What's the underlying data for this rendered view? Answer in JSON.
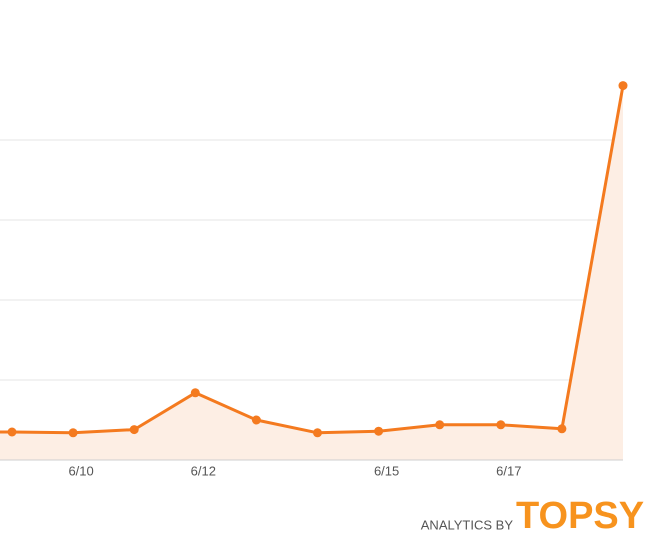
{
  "chart_data": {
    "type": "line",
    "categories": [
      null,
      "6/10",
      null,
      "6/12",
      null,
      null,
      "6/15",
      null,
      "6/17",
      null,
      null
    ],
    "values": [
      0.35,
      0.34,
      0.38,
      0.84,
      0.5,
      0.34,
      0.36,
      0.44,
      0.44,
      0.39,
      4.68
    ],
    "color": "#f47a1f",
    "area_color": "#fdeee4",
    "ylim": [
      0,
      5
    ],
    "yticks": [
      1,
      2,
      3,
      4
    ],
    "grid": true
  },
  "footer": {
    "prefix": "ANALYTICS BY",
    "brand": "TOPSY"
  }
}
